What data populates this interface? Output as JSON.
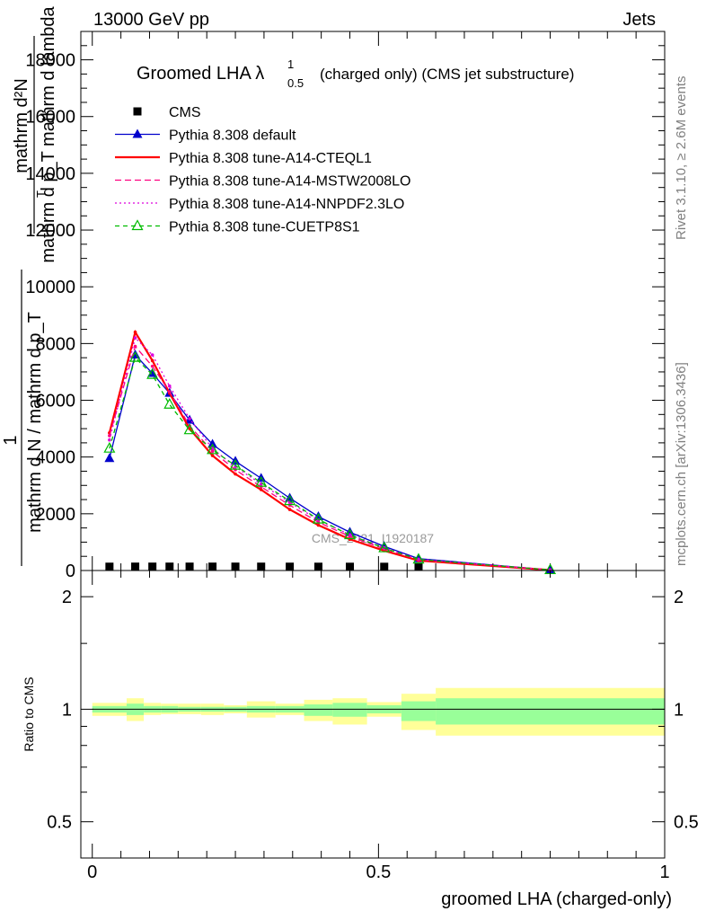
{
  "header": {
    "left": "13000 GeV pp",
    "right": "Jets"
  },
  "side_text": {
    "rivet": "Rivet 3.1.10, ≥ 2.6M events",
    "mcplots": "mcplots.cern.ch [arXiv:1306.3436]"
  },
  "watermark": "CMS_2021_I1920187",
  "chart_data": [
    {
      "type": "line",
      "title_main": "Groomed LHA λ",
      "title_sup": "1",
      "title_sub": "0.5",
      "title_rest": "(charged only) (CMS jet substructure)",
      "xlim": [
        -0.02,
        1.0
      ],
      "ylim": [
        0,
        19000
      ],
      "ylabel": "1 / mathrm d N / mathrm d p_T   mathrm d^2N / mathrm d p_T mathrm d lambda",
      "ylabel_numerator": "mathrm d²N",
      "ylabel_denominator": "mathrm d p_T mathrm d lambda",
      "ylabel_top_index": "2",
      "ylabel_bot_index": "T",
      "ylabel_prefix_top": "1",
      "ylabel_prefix_bottom": "mathrm d N / mathrm d p_T",
      "yticks": [
        0,
        2000,
        4000,
        6000,
        8000,
        10000,
        12000,
        14000,
        16000,
        18000
      ],
      "ytick_labels": [
        "0",
        "2000",
        "4000",
        "6000",
        "8000",
        "10000",
        "12000",
        "14000",
        "16000",
        "18000"
      ],
      "legend_position": "top-left",
      "x": [
        0.03,
        0.075,
        0.105,
        0.135,
        0.17,
        0.21,
        0.25,
        0.295,
        0.345,
        0.395,
        0.45,
        0.51,
        0.57,
        0.8
      ],
      "series": [
        {
          "name": "CMS",
          "color": "#000000",
          "style": "marker",
          "marker": "square",
          "values": [
            8,
            10,
            10,
            10,
            10,
            10,
            10,
            9,
            8,
            7,
            6,
            5,
            4,
            null
          ]
        },
        {
          "name": "Pythia 8.308 default",
          "color": "#0000cc",
          "style": "solid",
          "marker": "triangle-filled",
          "values": [
            3950,
            7600,
            6950,
            6250,
            5300,
            4450,
            3850,
            3250,
            2550,
            1900,
            1350,
            850,
            420,
            20
          ]
        },
        {
          "name": "Pythia 8.308 tune-A14-CTEQL1",
          "color": "#ff0000",
          "style": "solid-thick",
          "marker": "dot",
          "values": [
            4850,
            8400,
            7400,
            6250,
            5000,
            4050,
            3400,
            2850,
            2150,
            1600,
            1100,
            700,
            350,
            15
          ]
        },
        {
          "name": "Pythia 8.308 tune-A14-MSTW2008LO",
          "color": "#ff0080",
          "style": "dashed",
          "marker": "dot",
          "values": [
            4750,
            7900,
            7200,
            6300,
            5100,
            4200,
            3550,
            2950,
            2300,
            1700,
            1200,
            760,
            380,
            17
          ]
        },
        {
          "name": "Pythia 8.308 tune-A14-NNPDF2.3LO",
          "color": "#dd00dd",
          "style": "dotted",
          "marker": "dot",
          "values": [
            4600,
            8200,
            7600,
            6500,
            5350,
            4300,
            3650,
            3050,
            2400,
            1780,
            1260,
            800,
            400,
            18
          ]
        },
        {
          "name": "Pythia 8.308 tune-CUETP8S1",
          "color": "#00bb00",
          "style": "dashed-fine",
          "marker": "triangle-open",
          "values": [
            4300,
            7500,
            6900,
            5850,
            4950,
            4250,
            3700,
            3100,
            2450,
            1800,
            1250,
            790,
            390,
            18
          ]
        }
      ]
    },
    {
      "type": "area",
      "ylabel": "Ratio to CMS",
      "xlabel": "groomed LHA (charged-only)",
      "ylim": [
        0.4,
        2.35
      ],
      "yscale": "log",
      "xlim": [
        -0.02,
        1.0
      ],
      "xticks": [
        0,
        0.5,
        1
      ],
      "xtick_labels": [
        "0",
        "0.5",
        "1"
      ],
      "yticks": [
        0.5,
        1,
        2
      ],
      "ytick_labels": [
        "0.5",
        "1",
        "2"
      ],
      "band_colors": {
        "outer": "#ffff99",
        "inner": "#99ff99",
        "line": "#000000"
      },
      "bins": [
        {
          "x0": 0.0,
          "x1": 0.06,
          "inner": [
            0.98,
            1.02
          ],
          "outer": [
            0.96,
            1.04
          ]
        },
        {
          "x0": 0.06,
          "x1": 0.09,
          "inner": [
            0.965,
            1.035
          ],
          "outer": [
            0.93,
            1.07
          ]
        },
        {
          "x0": 0.09,
          "x1": 0.12,
          "inner": [
            0.98,
            1.02
          ],
          "outer": [
            0.965,
            1.04
          ]
        },
        {
          "x0": 0.12,
          "x1": 0.15,
          "inner": [
            0.98,
            1.02
          ],
          "outer": [
            0.97,
            1.035
          ]
        },
        {
          "x0": 0.15,
          "x1": 0.19,
          "inner": [
            0.985,
            1.015
          ],
          "outer": [
            0.97,
            1.035
          ]
        },
        {
          "x0": 0.19,
          "x1": 0.23,
          "inner": [
            0.985,
            1.015
          ],
          "outer": [
            0.965,
            1.035
          ]
        },
        {
          "x0": 0.23,
          "x1": 0.27,
          "inner": [
            0.985,
            1.015
          ],
          "outer": [
            0.975,
            1.025
          ]
        },
        {
          "x0": 0.27,
          "x1": 0.32,
          "inner": [
            0.98,
            1.02
          ],
          "outer": [
            0.95,
            1.05
          ]
        },
        {
          "x0": 0.32,
          "x1": 0.37,
          "inner": [
            0.98,
            1.02
          ],
          "outer": [
            0.965,
            1.035
          ]
        },
        {
          "x0": 0.37,
          "x1": 0.42,
          "inner": [
            0.96,
            1.03
          ],
          "outer": [
            0.93,
            1.06
          ]
        },
        {
          "x0": 0.42,
          "x1": 0.48,
          "inner": [
            0.955,
            1.04
          ],
          "outer": [
            0.91,
            1.07
          ]
        },
        {
          "x0": 0.48,
          "x1": 0.54,
          "inner": [
            0.975,
            1.025
          ],
          "outer": [
            0.955,
            1.045
          ]
        },
        {
          "x0": 0.54,
          "x1": 0.6,
          "inner": [
            0.93,
            1.05
          ],
          "outer": [
            0.88,
            1.1
          ]
        },
        {
          "x0": 0.6,
          "x1": 1.0,
          "inner": [
            0.91,
            1.07
          ],
          "outer": [
            0.85,
            1.14
          ]
        }
      ]
    }
  ]
}
